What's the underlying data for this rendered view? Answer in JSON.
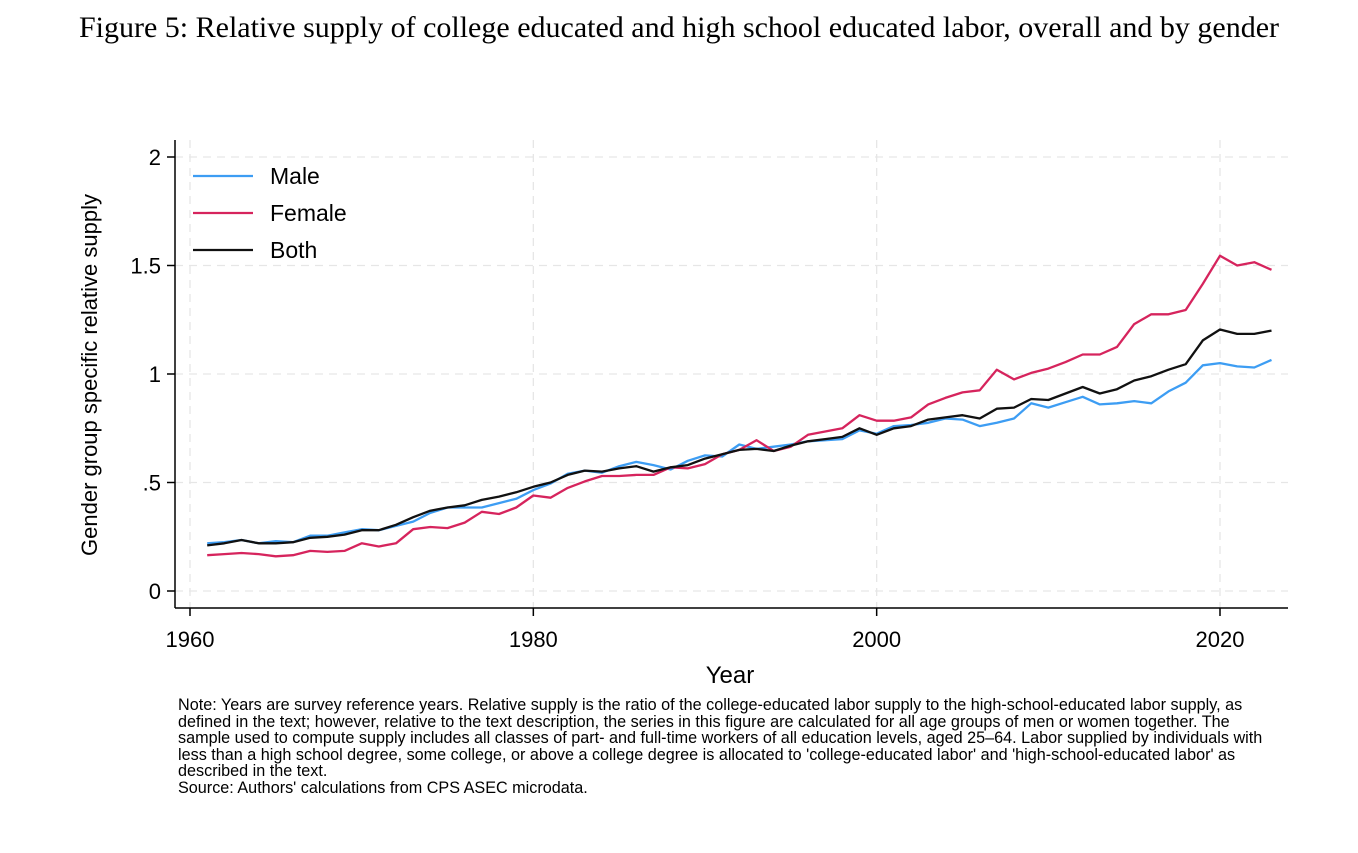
{
  "figure_title": "Figure 5: Relative supply of college educated and high school educated labor, overall and by gender",
  "note_text": "Note: Years are survey reference years. Relative supply is the ratio of the college-educated labor supply to the high-school-educated labor supply, as defined in the text; however, relative to the text description, the series in this figure are calculated for all age groups of men or women together. The sample used to compute supply includes all classes of part- and full-time workers of all education levels, aged 25–64. Labor supplied by individuals with less than a high school degree, some college, or above a college degree is allocated to 'college-educated labor' and 'high-school-educated labor' as described in the text.",
  "source_text": "Source: Authors' calculations from CPS ASEC microdata.",
  "chart_data": {
    "type": "line",
    "xlabel": "Year",
    "ylabel": "Gender group specific relative supply",
    "xlim": [
      1960,
      2024
    ],
    "ylim": [
      0,
      2
    ],
    "xticks": [
      1960,
      1980,
      2000,
      2020
    ],
    "xtick_labels": [
      "1960",
      "1980",
      "2000",
      "2020"
    ],
    "yticks": [
      0,
      0.5,
      1,
      1.5,
      2
    ],
    "ytick_labels": [
      "0",
      ".5",
      "1",
      "1.5",
      "2"
    ],
    "grid": true,
    "legend_position": "top-left",
    "x": [
      1961,
      1962,
      1963,
      1964,
      1965,
      1966,
      1967,
      1968,
      1969,
      1970,
      1971,
      1972,
      1973,
      1974,
      1975,
      1976,
      1977,
      1978,
      1979,
      1980,
      1981,
      1982,
      1983,
      1984,
      1985,
      1986,
      1987,
      1988,
      1989,
      1990,
      1991,
      1992,
      1993,
      1994,
      1995,
      1996,
      1997,
      1998,
      1999,
      2000,
      2001,
      2002,
      2003,
      2004,
      2005,
      2006,
      2007,
      2008,
      2009,
      2010,
      2011,
      2012,
      2013,
      2014,
      2015,
      2016,
      2017,
      2018,
      2019,
      2020,
      2021,
      2022,
      2023
    ],
    "series": [
      {
        "name": "Male",
        "color": "#3d9df3",
        "values": [
          0.22,
          0.225,
          0.235,
          0.22,
          0.23,
          0.225,
          0.255,
          0.255,
          0.27,
          0.285,
          0.28,
          0.3,
          0.32,
          0.36,
          0.385,
          0.385,
          0.385,
          0.405,
          0.425,
          0.465,
          0.495,
          0.54,
          0.555,
          0.545,
          0.575,
          0.595,
          0.58,
          0.56,
          0.6,
          0.625,
          0.62,
          0.675,
          0.655,
          0.665,
          0.675,
          0.69,
          0.695,
          0.7,
          0.74,
          0.725,
          0.76,
          0.765,
          0.775,
          0.795,
          0.79,
          0.76,
          0.775,
          0.795,
          0.865,
          0.845,
          0.87,
          0.895,
          0.86,
          0.865,
          0.875,
          0.865,
          0.92,
          0.96,
          1.04,
          1.05,
          1.035,
          1.03,
          1.065
        ]
      },
      {
        "name": "Female",
        "color": "#d6245d",
        "values": [
          0.165,
          0.17,
          0.175,
          0.17,
          0.16,
          0.165,
          0.185,
          0.18,
          0.185,
          0.22,
          0.205,
          0.22,
          0.285,
          0.295,
          0.29,
          0.315,
          0.365,
          0.355,
          0.385,
          0.44,
          0.43,
          0.475,
          0.505,
          0.53,
          0.53,
          0.535,
          0.535,
          0.57,
          0.565,
          0.585,
          0.63,
          0.65,
          0.695,
          0.645,
          0.665,
          0.72,
          0.735,
          0.75,
          0.81,
          0.785,
          0.785,
          0.8,
          0.86,
          0.89,
          0.915,
          0.925,
          1.02,
          0.975,
          1.005,
          1.025,
          1.055,
          1.09,
          1.09,
          1.125,
          1.23,
          1.275,
          1.275,
          1.295,
          1.415,
          1.545,
          1.5,
          1.515,
          1.48
        ]
      },
      {
        "name": "Both",
        "color": "#111111",
        "values": [
          0.21,
          0.22,
          0.235,
          0.22,
          0.22,
          0.225,
          0.245,
          0.25,
          0.26,
          0.28,
          0.28,
          0.305,
          0.34,
          0.37,
          0.385,
          0.395,
          0.42,
          0.435,
          0.455,
          0.48,
          0.5,
          0.535,
          0.555,
          0.55,
          0.565,
          0.575,
          0.55,
          0.57,
          0.58,
          0.61,
          0.63,
          0.65,
          0.655,
          0.645,
          0.67,
          0.69,
          0.7,
          0.71,
          0.75,
          0.72,
          0.75,
          0.76,
          0.79,
          0.8,
          0.81,
          0.795,
          0.84,
          0.845,
          0.885,
          0.88,
          0.91,
          0.94,
          0.91,
          0.93,
          0.97,
          0.99,
          1.02,
          1.045,
          1.155,
          1.205,
          1.185,
          1.185,
          1.2
        ]
      }
    ]
  }
}
